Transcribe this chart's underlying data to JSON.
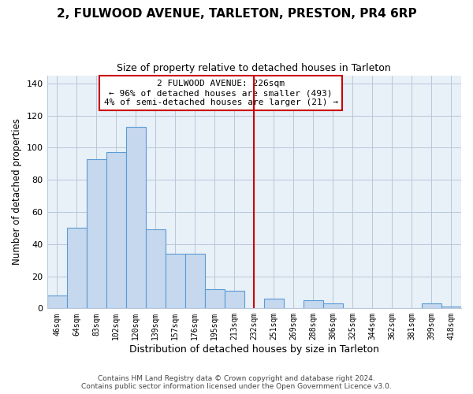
{
  "title": "2, FULWOOD AVENUE, TARLETON, PRESTON, PR4 6RP",
  "subtitle": "Size of property relative to detached houses in Tarleton",
  "xlabel": "Distribution of detached houses by size in Tarleton",
  "ylabel": "Number of detached properties",
  "bar_labels": [
    "46sqm",
    "64sqm",
    "83sqm",
    "102sqm",
    "120sqm",
    "139sqm",
    "157sqm",
    "176sqm",
    "195sqm",
    "213sqm",
    "232sqm",
    "251sqm",
    "269sqm",
    "288sqm",
    "306sqm",
    "325sqm",
    "344sqm",
    "362sqm",
    "381sqm",
    "399sqm",
    "418sqm"
  ],
  "bar_values": [
    8,
    50,
    93,
    97,
    113,
    49,
    34,
    34,
    12,
    11,
    0,
    6,
    0,
    5,
    3,
    0,
    0,
    0,
    0,
    3,
    1
  ],
  "bar_color": "#c5d8ed",
  "bar_edge_color": "#5b9bd5",
  "vline_x": 10,
  "vline_color": "#cc0000",
  "annotation_title": "2 FULWOOD AVENUE: 226sqm",
  "annotation_line1": "← 96% of detached houses are smaller (493)",
  "annotation_line2": "4% of semi-detached houses are larger (21) →",
  "ylim": [
    0,
    145
  ],
  "yticks": [
    0,
    20,
    40,
    60,
    80,
    100,
    120,
    140
  ],
  "footer1": "Contains HM Land Registry data © Crown copyright and database right 2024.",
  "footer2": "Contains public sector information licensed under the Open Government Licence v3.0.",
  "bg_color": "#ffffff",
  "plot_bg_color": "#e8f0f8",
  "grid_color": "#b8c8d8"
}
